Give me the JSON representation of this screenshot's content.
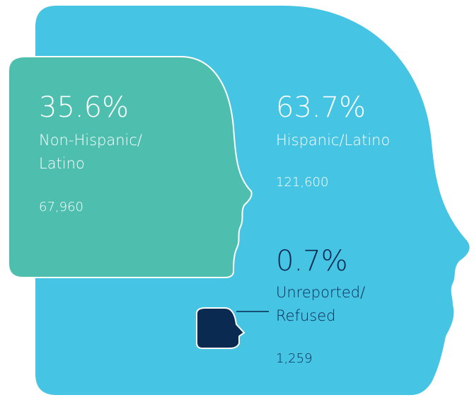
{
  "groups": [
    {
      "percent": "63.7%",
      "label": [
        "Hispanic/Latino"
      ],
      "count": "121,600"
    },
    {
      "percent": "35.6%",
      "label": [
        "Non-Hispanic/",
        "Latino"
      ],
      "count": "67,960"
    },
    {
      "percent": "0.7%",
      "label": [
        "Unreported/",
        "Refused"
      ],
      "count": "1,259"
    }
  ]
}
